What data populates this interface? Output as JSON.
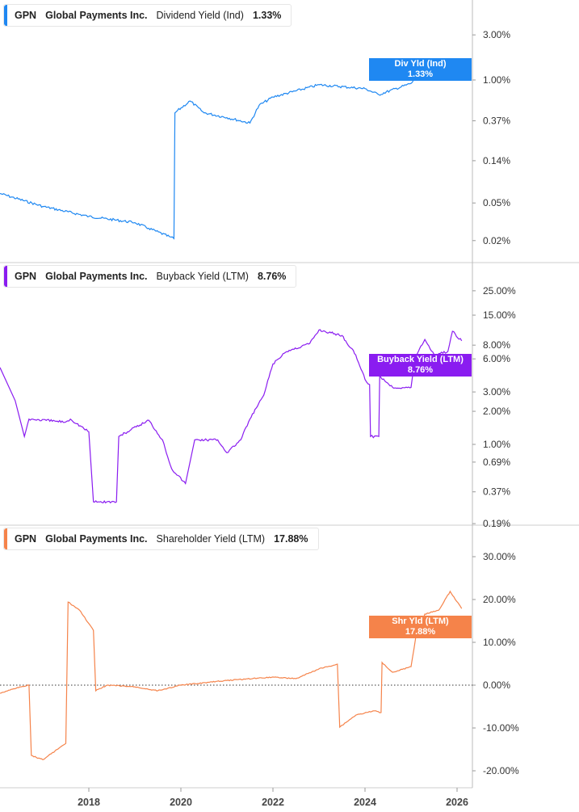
{
  "colors": {
    "dividend": "#1f88f2",
    "buyback": "#8a1cf0",
    "shareholder": "#f5834a",
    "axis": "#bbbbbb",
    "zero_line": "#333333"
  },
  "chart_data": [
    {
      "type": "line",
      "ticker": "GPN",
      "company": "Global Payments Inc.",
      "metric": "Dividend Yield (Ind)",
      "last_value": "1.33%",
      "tag_label": "Div Yld (Ind)",
      "tag_value": "1.33%",
      "scale": "log",
      "yticks": [
        "3.00%",
        "1.00%",
        "0.37%",
        "0.14%",
        "0.05%",
        "0.02%"
      ],
      "ytick_values": [
        3,
        1,
        0.37,
        0.14,
        0.05,
        0.02
      ],
      "x": [
        2016.07,
        2017.0,
        2018.0,
        2019.0,
        2019.3,
        2019.75,
        2019.85,
        2019.87,
        2020.2,
        2020.5,
        2021.0,
        2021.5,
        2021.7,
        2022.0,
        2023.0,
        2024.0,
        2024.3,
        2025.0,
        2025.3,
        2025.6,
        2026.1
      ],
      "y": [
        0.063,
        0.046,
        0.036,
        0.031,
        0.027,
        0.022,
        0.021,
        0.45,
        0.6,
        0.45,
        0.4,
        0.35,
        0.54,
        0.66,
        0.89,
        0.81,
        0.7,
        0.92,
        1.32,
        1.15,
        1.33
      ]
    },
    {
      "type": "line",
      "ticker": "GPN",
      "company": "Global Payments Inc.",
      "metric": "Buyback Yield (LTM)",
      "last_value": "8.76%",
      "tag_label": "Buyback Yield (LTM)",
      "tag_value": "8.76%",
      "scale": "log",
      "yticks": [
        "25.00%",
        "15.00%",
        "8.00%",
        "6.00%",
        "3.00%",
        "2.00%",
        "1.00%",
        "0.69%",
        "0.37%",
        "0.19%"
      ],
      "ytick_values": [
        25,
        15,
        8,
        6,
        3,
        2,
        1,
        0.69,
        0.37,
        0.19
      ],
      "x": [
        2016.07,
        2016.4,
        2016.6,
        2016.7,
        2017.5,
        2017.6,
        2018.0,
        2018.1,
        2018.6,
        2018.65,
        2019.3,
        2019.6,
        2019.8,
        2020.1,
        2020.3,
        2020.8,
        2021.0,
        2021.3,
        2021.5,
        2021.8,
        2022.0,
        2022.3,
        2022.8,
        2023.0,
        2023.5,
        2023.8,
        2024.0,
        2024.1,
        2024.12,
        2024.3,
        2024.32,
        2024.6,
        2025.0,
        2025.1,
        2025.3,
        2025.5,
        2025.8,
        2025.9,
        2026.1
      ],
      "y": [
        5.0,
        2.5,
        1.18,
        1.7,
        1.6,
        1.7,
        1.3,
        0.3,
        0.3,
        1.18,
        1.66,
        1.1,
        0.6,
        0.44,
        1.1,
        1.1,
        0.84,
        1.1,
        1.7,
        2.8,
        5.4,
        7,
        8.3,
        11,
        9.8,
        6.5,
        3.9,
        3.5,
        1.18,
        1.18,
        4.2,
        3.3,
        3.3,
        6.4,
        9,
        6.6,
        7,
        10.7,
        8.76
      ]
    },
    {
      "type": "line",
      "ticker": "GPN",
      "company": "Global Payments Inc.",
      "metric": "Shareholder Yield (LTM)",
      "last_value": "17.88%",
      "tag_label": "Shr Yld (LTM)",
      "tag_value": "17.88%",
      "scale": "linear",
      "yticks": [
        "30.00%",
        "20.00%",
        "10.00%",
        "0.00%",
        "-10.00%",
        "-20.00%"
      ],
      "ytick_values": [
        30,
        20,
        10,
        0,
        -10,
        -20
      ],
      "x": [
        2016.07,
        2016.5,
        2016.7,
        2016.75,
        2017.0,
        2017.5,
        2017.55,
        2017.8,
        2018.1,
        2018.15,
        2018.4,
        2019.0,
        2019.5,
        2020.0,
        2021.0,
        2022.0,
        2022.5,
        2023.0,
        2023.4,
        2023.45,
        2023.8,
        2024.2,
        2024.35,
        2024.37,
        2024.6,
        2025.0,
        2025.1,
        2025.3,
        2025.6,
        2025.85,
        2026.1
      ],
      "y": [
        -1.9,
        -0.4,
        0,
        -16.4,
        -17.4,
        -13.6,
        19.4,
        17.5,
        12.8,
        -1.3,
        0,
        -0.4,
        -1.3,
        0,
        1.1,
        1.9,
        1.5,
        3.8,
        4.9,
        -9.8,
        -7,
        -6,
        -6.4,
        5.3,
        3,
        4.3,
        11,
        16.6,
        17.5,
        21.9,
        17.88
      ]
    }
  ],
  "x_axis": {
    "ticks": [
      "2018",
      "2020",
      "2022",
      "2024",
      "2026"
    ],
    "tick_values": [
      2018,
      2020,
      2022,
      2024,
      2026
    ]
  }
}
